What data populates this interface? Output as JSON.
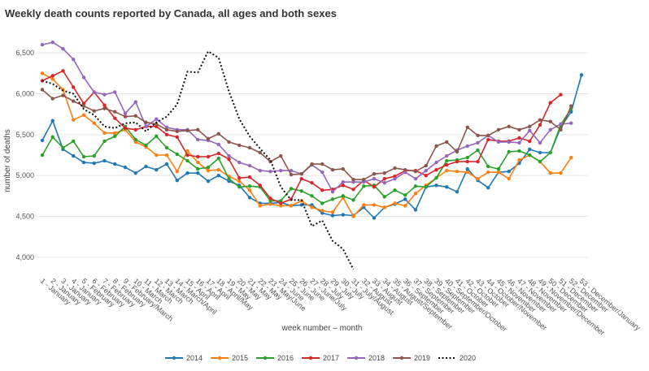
{
  "chart_data": {
    "type": "line",
    "title": "Weekly death counts reported by Canada, all ages and both sexes",
    "xlabel": "week number – month",
    "ylabel": "number of deaths",
    "ylim": [
      3800,
      6750
    ],
    "yticks": [
      4000,
      4500,
      5000,
      5500,
      6000,
      6500
    ],
    "ytick_labels": [
      "4,000",
      "4,500",
      "5,000",
      "5,500",
      "6,000",
      "6,500"
    ],
    "grid": true,
    "legend_position": "bottom",
    "categories": [
      "1 - January",
      "2 - January",
      "3 - January",
      "4 - January",
      "5 - February",
      "6 - February",
      "7 - February",
      "8 - February",
      "9 - February/March",
      "10 - March",
      "11 - March",
      "12 - March",
      "13 - March",
      "14 - March/April",
      "15 - April",
      "16 - April",
      "17 - April",
      "18 - April/May",
      "19 - May",
      "20 - May",
      "21 - May",
      "22 - May",
      "23 - May/June",
      "24 - June",
      "25 - June",
      "26 - June",
      "27 - June/July",
      "28 - July",
      "29 - July",
      "30 - July",
      "31 - July/August",
      "32 - August",
      "33 - August",
      "34 - August",
      "35 - August/September",
      "36 - September",
      "37 - September",
      "38 - September",
      "39 - September",
      "40 - September/October",
      "41 - October",
      "42 - October",
      "43 - October",
      "44 - October/November",
      "45 - November",
      "46 - November",
      "47 - November",
      "48 - November",
      "49 - November/December",
      "50 - December",
      "51 - December",
      "52 - December",
      "53 - December/January"
    ],
    "series": [
      {
        "name": "2014",
        "color": "#1f77b4",
        "dash": "solid",
        "values": [
          5430,
          5670,
          5320,
          5240,
          5160,
          5150,
          5180,
          5140,
          5100,
          5030,
          5110,
          5070,
          5140,
          4940,
          5030,
          5030,
          4930,
          5000,
          4930,
          4880,
          4730,
          4660,
          4660,
          4670,
          4630,
          4640,
          4640,
          4540,
          4510,
          4520,
          4510,
          4610,
          4480,
          4610,
          4650,
          4710,
          4580,
          4860,
          4880,
          4860,
          4800,
          5080,
          4940,
          4850,
          5040,
          5050,
          5150,
          5320,
          5280,
          5280,
          5590,
          5780,
          6230
        ]
      },
      {
        "name": "2015",
        "color": "#ff7f0e",
        "dash": "solid",
        "values": [
          6250,
          6180,
          6050,
          5680,
          5740,
          5640,
          5520,
          5520,
          5560,
          5410,
          5350,
          5250,
          5250,
          5050,
          5300,
          5160,
          5060,
          5070,
          4990,
          4930,
          4820,
          4630,
          4650,
          4630,
          4630,
          4690,
          4610,
          4570,
          4550,
          4730,
          4500,
          4640,
          4640,
          4610,
          4660,
          4630,
          4780,
          4880,
          4970,
          5060,
          5050,
          5040,
          4960,
          5040,
          5040,
          4960,
          5190,
          5250,
          5170,
          5030,
          5030,
          5220,
          null
        ]
      },
      {
        "name": "2016",
        "color": "#2ca02c",
        "dash": "solid",
        "values": [
          5250,
          5470,
          5340,
          5420,
          5230,
          5240,
          5420,
          5480,
          5600,
          5440,
          5370,
          5480,
          5340,
          5260,
          5180,
          5080,
          5100,
          5210,
          4960,
          4860,
          4870,
          4860,
          4690,
          4690,
          4840,
          4810,
          4750,
          4660,
          4710,
          4750,
          4700,
          4870,
          4880,
          4740,
          4820,
          4760,
          4870,
          4860,
          4970,
          5180,
          5190,
          5220,
          5310,
          5110,
          5080,
          5290,
          5300,
          5250,
          5170,
          5280,
          5620,
          5820,
          null
        ]
      },
      {
        "name": "2017",
        "color": "#d62728",
        "dash": "solid",
        "values": [
          6160,
          6220,
          6280,
          6080,
          5880,
          6020,
          5860,
          5700,
          5580,
          5560,
          5600,
          5600,
          5500,
          5470,
          5250,
          5230,
          5230,
          5270,
          5200,
          4970,
          4980,
          4880,
          4720,
          4660,
          4710,
          4960,
          4910,
          4820,
          4830,
          4880,
          4830,
          4940,
          4860,
          4960,
          4990,
          5060,
          5060,
          5000,
          5070,
          5130,
          5170,
          5170,
          5170,
          5440,
          5420,
          5420,
          5460,
          5420,
          5620,
          5890,
          5990,
          null,
          null
        ]
      },
      {
        "name": "2018",
        "color": "#9467bd",
        "dash": "solid",
        "values": [
          6600,
          6630,
          6550,
          6420,
          6200,
          6020,
          5990,
          6020,
          5760,
          5900,
          5600,
          5690,
          5590,
          5560,
          5560,
          5440,
          5430,
          5380,
          5240,
          5160,
          5120,
          5060,
          5050,
          5060,
          5060,
          5020,
          5130,
          5040,
          4800,
          4920,
          4920,
          4920,
          4960,
          4910,
          4960,
          5040,
          4960,
          5060,
          5160,
          5240,
          5310,
          5360,
          5400,
          5490,
          5410,
          5410,
          5400,
          5550,
          5400,
          5560,
          5630,
          5640,
          null
        ]
      },
      {
        "name": "2019",
        "color": "#8c564b",
        "dash": "solid",
        "values": [
          6050,
          5940,
          5980,
          5910,
          5850,
          5790,
          5820,
          5780,
          5720,
          5730,
          5650,
          5630,
          5560,
          5540,
          5550,
          5560,
          5450,
          5510,
          5410,
          5370,
          5340,
          5280,
          5170,
          5240,
          5010,
          5020,
          5140,
          5140,
          5070,
          5080,
          4950,
          4950,
          5020,
          5030,
          5090,
          5070,
          5050,
          5120,
          5360,
          5410,
          5290,
          5590,
          5490,
          5490,
          5560,
          5600,
          5560,
          5600,
          5680,
          5660,
          5560,
          5850,
          null
        ]
      },
      {
        "name": "2020",
        "color": "#111111",
        "dash": "dotted",
        "values": [
          6160,
          6120,
          6040,
          6000,
          5810,
          5740,
          5600,
          5580,
          5640,
          5650,
          5540,
          5650,
          5720,
          5870,
          6270,
          6260,
          6520,
          6440,
          6030,
          5690,
          5480,
          5330,
          5190,
          4860,
          4700,
          4700,
          4380,
          4450,
          4200,
          4100,
          3850,
          null,
          null,
          null,
          null,
          null,
          null,
          null,
          null,
          null,
          null,
          null,
          null,
          null,
          null,
          null,
          null,
          null,
          null,
          null,
          null,
          null,
          null
        ]
      }
    ]
  }
}
